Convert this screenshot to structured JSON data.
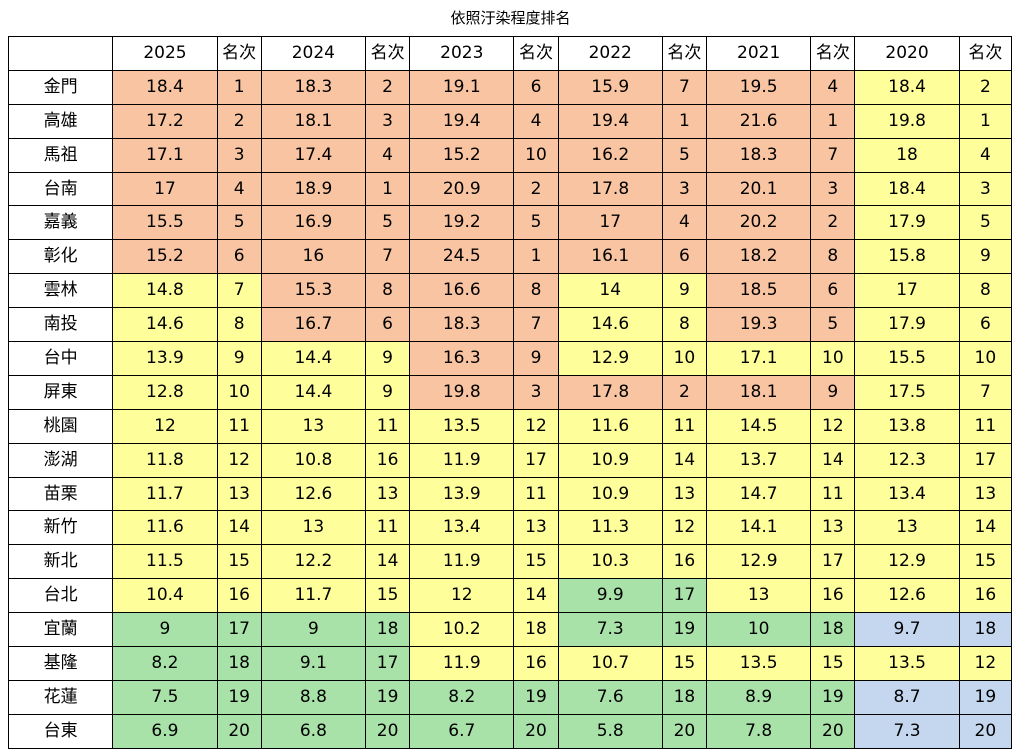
{
  "title": "依照汙染程度排名",
  "colors": {
    "o": "#f8c4a1",
    "y": "#fefe9b",
    "g": "#a8e2a8",
    "b": "#c5d7ef"
  },
  "header": [
    "",
    "2025",
    "名次",
    "2024",
    "名次",
    "2023",
    "名次",
    "2022",
    "名次",
    "2021",
    "名次",
    "2020",
    "名次"
  ],
  "rows": [
    {
      "city": "金門",
      "cells": [
        [
          "18.4",
          "o"
        ],
        [
          "1",
          "o"
        ],
        [
          "18.3",
          "o"
        ],
        [
          "2",
          "o"
        ],
        [
          "19.1",
          "o"
        ],
        [
          "6",
          "o"
        ],
        [
          "15.9",
          "o"
        ],
        [
          "7",
          "o"
        ],
        [
          "19.5",
          "o"
        ],
        [
          "4",
          "o"
        ],
        [
          "18.4",
          "y"
        ],
        [
          "2",
          "y"
        ]
      ]
    },
    {
      "city": "高雄",
      "cells": [
        [
          "17.2",
          "o"
        ],
        [
          "2",
          "o"
        ],
        [
          "18.1",
          "o"
        ],
        [
          "3",
          "o"
        ],
        [
          "19.4",
          "o"
        ],
        [
          "4",
          "o"
        ],
        [
          "19.4",
          "o"
        ],
        [
          "1",
          "o"
        ],
        [
          "21.6",
          "o"
        ],
        [
          "1",
          "o"
        ],
        [
          "19.8",
          "y"
        ],
        [
          "1",
          "y"
        ]
      ]
    },
    {
      "city": "馬祖",
      "cells": [
        [
          "17.1",
          "o"
        ],
        [
          "3",
          "o"
        ],
        [
          "17.4",
          "o"
        ],
        [
          "4",
          "o"
        ],
        [
          "15.2",
          "o"
        ],
        [
          "10",
          "o"
        ],
        [
          "16.2",
          "o"
        ],
        [
          "5",
          "o"
        ],
        [
          "18.3",
          "o"
        ],
        [
          "7",
          "o"
        ],
        [
          "18",
          "y"
        ],
        [
          "4",
          "y"
        ]
      ]
    },
    {
      "city": "台南",
      "cells": [
        [
          "17",
          "o"
        ],
        [
          "4",
          "o"
        ],
        [
          "18.9",
          "o"
        ],
        [
          "1",
          "o"
        ],
        [
          "20.9",
          "o"
        ],
        [
          "2",
          "o"
        ],
        [
          "17.8",
          "o"
        ],
        [
          "3",
          "o"
        ],
        [
          "20.1",
          "o"
        ],
        [
          "3",
          "o"
        ],
        [
          "18.4",
          "y"
        ],
        [
          "3",
          "y"
        ]
      ]
    },
    {
      "city": "嘉義",
      "cells": [
        [
          "15.5",
          "o"
        ],
        [
          "5",
          "o"
        ],
        [
          "16.9",
          "o"
        ],
        [
          "5",
          "o"
        ],
        [
          "19.2",
          "o"
        ],
        [
          "5",
          "o"
        ],
        [
          "17",
          "o"
        ],
        [
          "4",
          "o"
        ],
        [
          "20.2",
          "o"
        ],
        [
          "2",
          "o"
        ],
        [
          "17.9",
          "y"
        ],
        [
          "5",
          "y"
        ]
      ]
    },
    {
      "city": "彰化",
      "cells": [
        [
          "15.2",
          "o"
        ],
        [
          "6",
          "o"
        ],
        [
          "16",
          "o"
        ],
        [
          "7",
          "o"
        ],
        [
          "24.5",
          "o"
        ],
        [
          "1",
          "o"
        ],
        [
          "16.1",
          "o"
        ],
        [
          "6",
          "o"
        ],
        [
          "18.2",
          "o"
        ],
        [
          "8",
          "o"
        ],
        [
          "15.8",
          "y"
        ],
        [
          "9",
          "y"
        ]
      ]
    },
    {
      "city": "雲林",
      "cells": [
        [
          "14.8",
          "y"
        ],
        [
          "7",
          "y"
        ],
        [
          "15.3",
          "o"
        ],
        [
          "8",
          "o"
        ],
        [
          "16.6",
          "o"
        ],
        [
          "8",
          "o"
        ],
        [
          "14",
          "y"
        ],
        [
          "9",
          "y"
        ],
        [
          "18.5",
          "o"
        ],
        [
          "6",
          "o"
        ],
        [
          "17",
          "y"
        ],
        [
          "8",
          "y"
        ]
      ]
    },
    {
      "city": "南投",
      "cells": [
        [
          "14.6",
          "y"
        ],
        [
          "8",
          "y"
        ],
        [
          "16.7",
          "o"
        ],
        [
          "6",
          "o"
        ],
        [
          "18.3",
          "o"
        ],
        [
          "7",
          "o"
        ],
        [
          "14.6",
          "y"
        ],
        [
          "8",
          "y"
        ],
        [
          "19.3",
          "o"
        ],
        [
          "5",
          "o"
        ],
        [
          "17.9",
          "y"
        ],
        [
          "6",
          "y"
        ]
      ]
    },
    {
      "city": "台中",
      "cells": [
        [
          "13.9",
          "y"
        ],
        [
          "9",
          "y"
        ],
        [
          "14.4",
          "y"
        ],
        [
          "9",
          "y"
        ],
        [
          "16.3",
          "o"
        ],
        [
          "9",
          "o"
        ],
        [
          "12.9",
          "y"
        ],
        [
          "10",
          "y"
        ],
        [
          "17.1",
          "y"
        ],
        [
          "10",
          "y"
        ],
        [
          "15.5",
          "y"
        ],
        [
          "10",
          "y"
        ]
      ]
    },
    {
      "city": "屏東",
      "cells": [
        [
          "12.8",
          "y"
        ],
        [
          "10",
          "y"
        ],
        [
          "14.4",
          "y"
        ],
        [
          "9",
          "y"
        ],
        [
          "19.8",
          "o"
        ],
        [
          "3",
          "o"
        ],
        [
          "17.8",
          "o"
        ],
        [
          "2",
          "o"
        ],
        [
          "18.1",
          "o"
        ],
        [
          "9",
          "o"
        ],
        [
          "17.5",
          "y"
        ],
        [
          "7",
          "y"
        ]
      ]
    },
    {
      "city": "桃園",
      "cells": [
        [
          "12",
          "y"
        ],
        [
          "11",
          "y"
        ],
        [
          "13",
          "y"
        ],
        [
          "11",
          "y"
        ],
        [
          "13.5",
          "y"
        ],
        [
          "12",
          "y"
        ],
        [
          "11.6",
          "y"
        ],
        [
          "11",
          "y"
        ],
        [
          "14.5",
          "y"
        ],
        [
          "12",
          "y"
        ],
        [
          "13.8",
          "y"
        ],
        [
          "11",
          "y"
        ]
      ]
    },
    {
      "city": "澎湖",
      "cells": [
        [
          "11.8",
          "y"
        ],
        [
          "12",
          "y"
        ],
        [
          "10.8",
          "y"
        ],
        [
          "16",
          "y"
        ],
        [
          "11.9",
          "y"
        ],
        [
          "17",
          "y"
        ],
        [
          "10.9",
          "y"
        ],
        [
          "14",
          "y"
        ],
        [
          "13.7",
          "y"
        ],
        [
          "14",
          "y"
        ],
        [
          "12.3",
          "y"
        ],
        [
          "17",
          "y"
        ]
      ]
    },
    {
      "city": "苗栗",
      "cells": [
        [
          "11.7",
          "y"
        ],
        [
          "13",
          "y"
        ],
        [
          "12.6",
          "y"
        ],
        [
          "13",
          "y"
        ],
        [
          "13.9",
          "y"
        ],
        [
          "11",
          "y"
        ],
        [
          "10.9",
          "y"
        ],
        [
          "13",
          "y"
        ],
        [
          "14.7",
          "y"
        ],
        [
          "11",
          "y"
        ],
        [
          "13.4",
          "y"
        ],
        [
          "13",
          "y"
        ]
      ]
    },
    {
      "city": "新竹",
      "cells": [
        [
          "11.6",
          "y"
        ],
        [
          "14",
          "y"
        ],
        [
          "13",
          "y"
        ],
        [
          "11",
          "y"
        ],
        [
          "13.4",
          "y"
        ],
        [
          "13",
          "y"
        ],
        [
          "11.3",
          "y"
        ],
        [
          "12",
          "y"
        ],
        [
          "14.1",
          "y"
        ],
        [
          "13",
          "y"
        ],
        [
          "13",
          "y"
        ],
        [
          "14",
          "y"
        ]
      ]
    },
    {
      "city": "新北",
      "cells": [
        [
          "11.5",
          "y"
        ],
        [
          "15",
          "y"
        ],
        [
          "12.2",
          "y"
        ],
        [
          "14",
          "y"
        ],
        [
          "11.9",
          "y"
        ],
        [
          "15",
          "y"
        ],
        [
          "10.3",
          "y"
        ],
        [
          "16",
          "y"
        ],
        [
          "12.9",
          "y"
        ],
        [
          "17",
          "y"
        ],
        [
          "12.9",
          "y"
        ],
        [
          "15",
          "y"
        ]
      ]
    },
    {
      "city": "台北",
      "cells": [
        [
          "10.4",
          "y"
        ],
        [
          "16",
          "y"
        ],
        [
          "11.7",
          "y"
        ],
        [
          "15",
          "y"
        ],
        [
          "12",
          "y"
        ],
        [
          "14",
          "y"
        ],
        [
          "9.9",
          "g"
        ],
        [
          "17",
          "g"
        ],
        [
          "13",
          "y"
        ],
        [
          "16",
          "y"
        ],
        [
          "12.6",
          "y"
        ],
        [
          "16",
          "y"
        ]
      ]
    },
    {
      "city": "宜蘭",
      "cells": [
        [
          "9",
          "g"
        ],
        [
          "17",
          "g"
        ],
        [
          "9",
          "g"
        ],
        [
          "18",
          "g"
        ],
        [
          "10.2",
          "y"
        ],
        [
          "18",
          "y"
        ],
        [
          "7.3",
          "g"
        ],
        [
          "19",
          "g"
        ],
        [
          "10",
          "g"
        ],
        [
          "18",
          "g"
        ],
        [
          "9.7",
          "b"
        ],
        [
          "18",
          "b"
        ]
      ]
    },
    {
      "city": "基隆",
      "cells": [
        [
          "8.2",
          "g"
        ],
        [
          "18",
          "g"
        ],
        [
          "9.1",
          "g"
        ],
        [
          "17",
          "g"
        ],
        [
          "11.9",
          "y"
        ],
        [
          "16",
          "y"
        ],
        [
          "10.7",
          "y"
        ],
        [
          "15",
          "y"
        ],
        [
          "13.5",
          "y"
        ],
        [
          "15",
          "y"
        ],
        [
          "13.5",
          "y"
        ],
        [
          "12",
          "y"
        ]
      ]
    },
    {
      "city": "花蓮",
      "cells": [
        [
          "7.5",
          "g"
        ],
        [
          "19",
          "g"
        ],
        [
          "8.8",
          "g"
        ],
        [
          "19",
          "g"
        ],
        [
          "8.2",
          "g"
        ],
        [
          "19",
          "g"
        ],
        [
          "7.6",
          "g"
        ],
        [
          "18",
          "g"
        ],
        [
          "8.9",
          "g"
        ],
        [
          "19",
          "g"
        ],
        [
          "8.7",
          "b"
        ],
        [
          "19",
          "b"
        ]
      ]
    },
    {
      "city": "台東",
      "cells": [
        [
          "6.9",
          "g"
        ],
        [
          "20",
          "g"
        ],
        [
          "6.8",
          "g"
        ],
        [
          "20",
          "g"
        ],
        [
          "6.7",
          "g"
        ],
        [
          "20",
          "g"
        ],
        [
          "5.8",
          "g"
        ],
        [
          "20",
          "g"
        ],
        [
          "7.8",
          "g"
        ],
        [
          "20",
          "g"
        ],
        [
          "7.3",
          "b"
        ],
        [
          "20",
          "b"
        ]
      ]
    }
  ]
}
